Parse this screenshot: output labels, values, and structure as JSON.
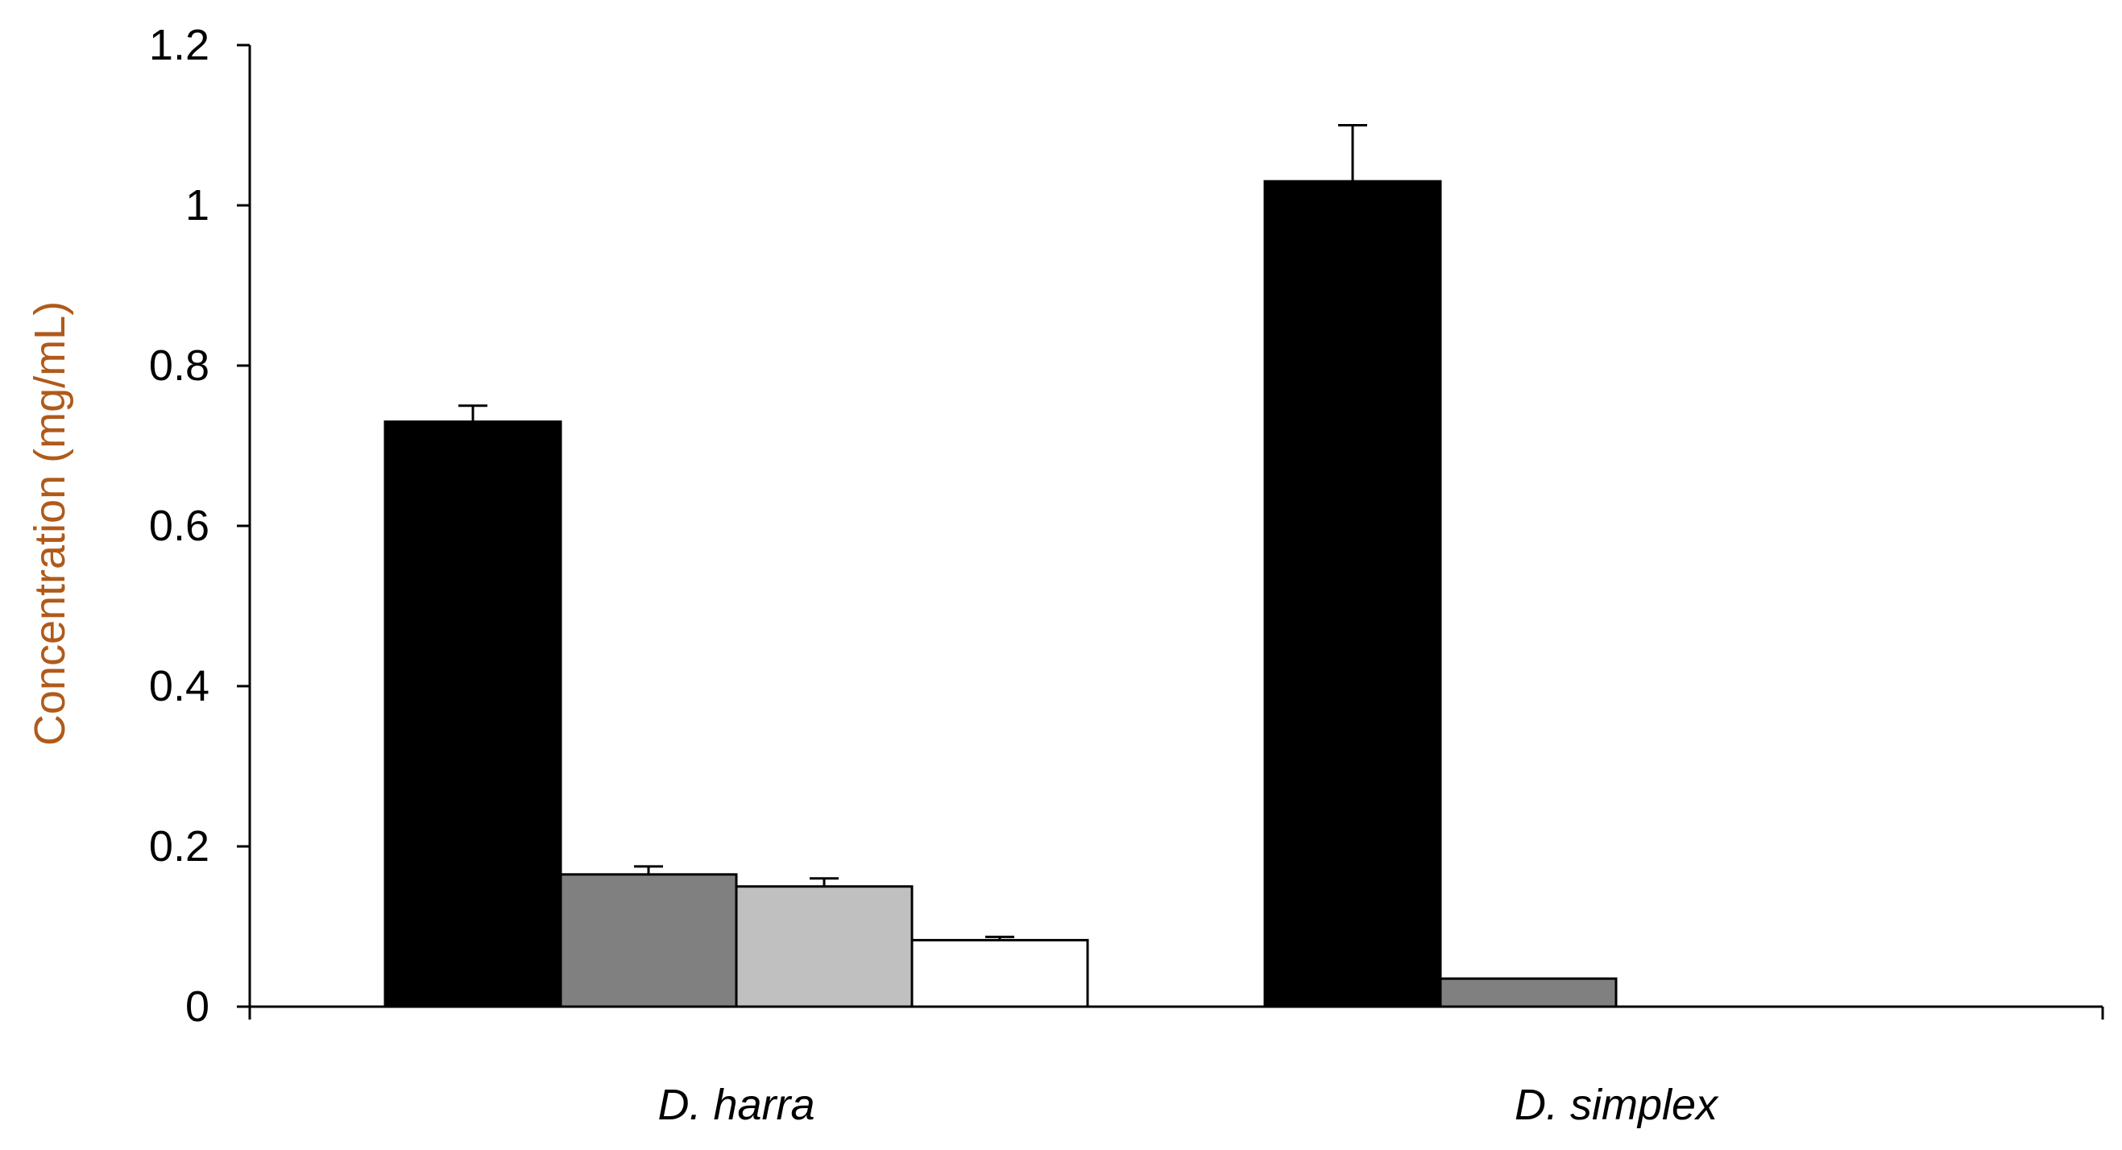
{
  "chart_data": {
    "type": "bar",
    "categories": [
      "D. harra",
      "D. simplex"
    ],
    "ylabel": "Concentration (mg/mL)",
    "xlabel": "",
    "ylim": [
      0,
      1.2
    ],
    "yticks": [
      "0",
      "0.2",
      "0.4",
      "0.6",
      "0.8",
      "1",
      "1.2"
    ],
    "grid": false,
    "legend": "none",
    "series": [
      {
        "color": "#000000",
        "values": [
          0.73,
          1.03
        ],
        "errors": [
          0.02,
          0.07
        ]
      },
      {
        "color": "#808080",
        "values": [
          0.165,
          0.035
        ],
        "errors": [
          0.01,
          0
        ]
      },
      {
        "color": "#c0c0c0",
        "values": [
          0.15,
          0
        ],
        "errors": [
          0.01,
          0
        ]
      },
      {
        "color": "#ffffff",
        "values": [
          0.083,
          0
        ],
        "errors": [
          0.004,
          0
        ]
      }
    ],
    "colors": {
      "ylabel": "#b05a1a",
      "axis": "#000000"
    }
  }
}
